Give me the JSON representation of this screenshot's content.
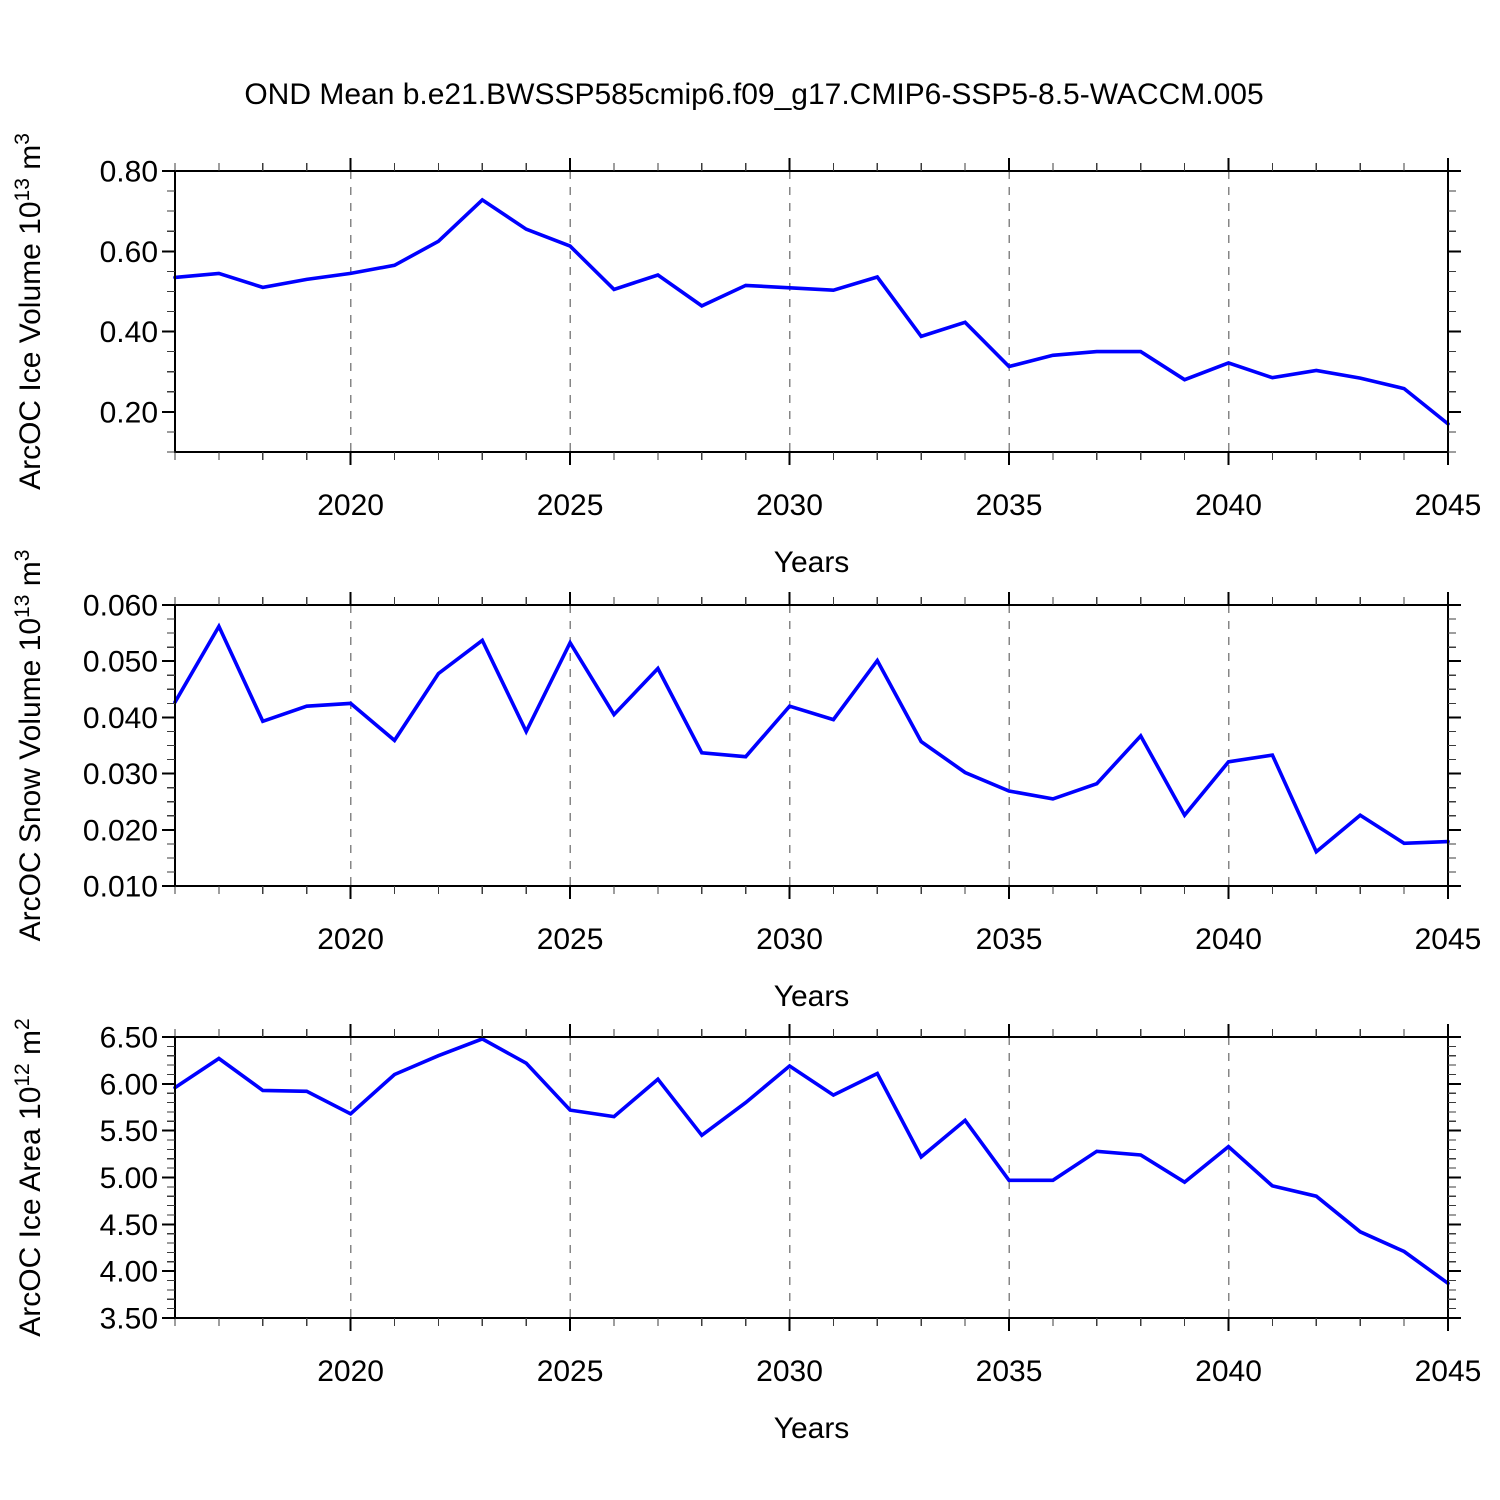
{
  "title": "OND Mean b.e21.BWSSP585cmip6.f09_g17.CMIP6-SSP5-8.5-WACCM.005",
  "colors": {
    "line": "#0000ff",
    "gridline": "#868686",
    "axis": "#000000",
    "background": "#ffffff",
    "text": "#000000"
  },
  "x_axis": {
    "label": "Years",
    "min": 2016,
    "max": 2045,
    "minor_step": 1,
    "major_ticks": [
      2020,
      2025,
      2030,
      2035,
      2040,
      2045
    ],
    "major_tick_labels": [
      "2020",
      "2025",
      "2030",
      "2035",
      "2040",
      "2045"
    ],
    "gridlines": [
      2020,
      2025,
      2030,
      2035,
      2040
    ]
  },
  "chart_data": [
    {
      "id": "ice-volume",
      "type": "line",
      "ylabel_text": "ArcOC Ice Volume 10^13 m^3",
      "ylabel_segments": [
        {
          "t": "ArcOC Ice Volume 10"
        },
        {
          "t": "13",
          "sup": true
        },
        {
          "t": " m"
        },
        {
          "t": "3",
          "sup": true
        }
      ],
      "ylim": [
        0.1,
        0.8
      ],
      "yticks": [
        0.2,
        0.4,
        0.6,
        0.8
      ],
      "ytick_labels": [
        "0.20",
        "0.40",
        "0.60",
        "0.80"
      ],
      "yminor_step": 0.05,
      "x": [
        2016,
        2017,
        2018,
        2019,
        2020,
        2021,
        2022,
        2023,
        2024,
        2025,
        2026,
        2027,
        2028,
        2029,
        2030,
        2031,
        2032,
        2033,
        2034,
        2035,
        2036,
        2037,
        2038,
        2039,
        2040,
        2041,
        2042,
        2043,
        2044,
        2045
      ],
      "values": [
        0.535,
        0.545,
        0.51,
        0.53,
        0.545,
        0.565,
        0.625,
        0.728,
        0.655,
        0.613,
        0.505,
        0.541,
        0.464,
        0.515,
        0.509,
        0.503,
        0.536,
        0.388,
        0.423,
        0.313,
        0.341,
        0.35,
        0.35,
        0.28,
        0.322,
        0.285,
        0.303,
        0.284,
        0.258,
        0.17
      ]
    },
    {
      "id": "snow-volume",
      "type": "line",
      "ylabel_text": "ArcOC Snow Volume 10^13 m^3",
      "ylabel_segments": [
        {
          "t": "ArcOC Snow Volume 10"
        },
        {
          "t": "13",
          "sup": true
        },
        {
          "t": " m"
        },
        {
          "t": "3",
          "sup": true
        }
      ],
      "ylim": [
        0.01,
        0.06
      ],
      "yticks": [
        0.01,
        0.02,
        0.03,
        0.04,
        0.05,
        0.06
      ],
      "ytick_labels": [
        "0.010",
        "0.020",
        "0.030",
        "0.040",
        "0.050",
        "0.060"
      ],
      "yminor_step": 0.0025,
      "x": [
        2016,
        2017,
        2018,
        2019,
        2020,
        2021,
        2022,
        2023,
        2024,
        2025,
        2026,
        2027,
        2028,
        2029,
        2030,
        2031,
        2032,
        2033,
        2034,
        2035,
        2036,
        2037,
        2038,
        2039,
        2040,
        2041,
        2042,
        2043,
        2044,
        2045
      ],
      "values": [
        0.0427,
        0.0562,
        0.0393,
        0.042,
        0.0425,
        0.0359,
        0.0478,
        0.0537,
        0.0375,
        0.0533,
        0.0405,
        0.0487,
        0.0337,
        0.033,
        0.042,
        0.0396,
        0.0501,
        0.0357,
        0.0302,
        0.0269,
        0.0255,
        0.0282,
        0.0367,
        0.0226,
        0.0321,
        0.0333,
        0.0161,
        0.0226,
        0.0176,
        0.0179
      ]
    },
    {
      "id": "ice-area",
      "type": "line",
      "ylabel_text": "ArcOC Ice Area 10^12 m^2",
      "ylabel_segments": [
        {
          "t": "ArcOC Ice Area 10"
        },
        {
          "t": "12",
          "sup": true
        },
        {
          "t": " m"
        },
        {
          "t": "2",
          "sup": true
        }
      ],
      "ylim": [
        3.5,
        6.5
      ],
      "yticks": [
        3.5,
        4.0,
        4.5,
        5.0,
        5.5,
        6.0,
        6.5
      ],
      "ytick_labels": [
        "3.50",
        "4.00",
        "4.50",
        "5.00",
        "5.50",
        "6.00",
        "6.50"
      ],
      "yminor_step": 0.1,
      "x": [
        2016,
        2017,
        2018,
        2019,
        2020,
        2021,
        2022,
        2023,
        2024,
        2025,
        2026,
        2027,
        2028,
        2029,
        2030,
        2031,
        2032,
        2033,
        2034,
        2035,
        2036,
        2037,
        2038,
        2039,
        2040,
        2041,
        2042,
        2043,
        2044,
        2045
      ],
      "values": [
        5.96,
        6.27,
        5.93,
        5.92,
        5.68,
        6.1,
        6.3,
        6.48,
        6.22,
        5.72,
        5.65,
        6.05,
        5.45,
        5.8,
        6.19,
        5.88,
        6.11,
        5.22,
        5.61,
        4.97,
        4.97,
        5.28,
        5.24,
        4.95,
        5.33,
        4.91,
        4.8,
        4.42,
        4.21,
        3.87
      ]
    }
  ]
}
